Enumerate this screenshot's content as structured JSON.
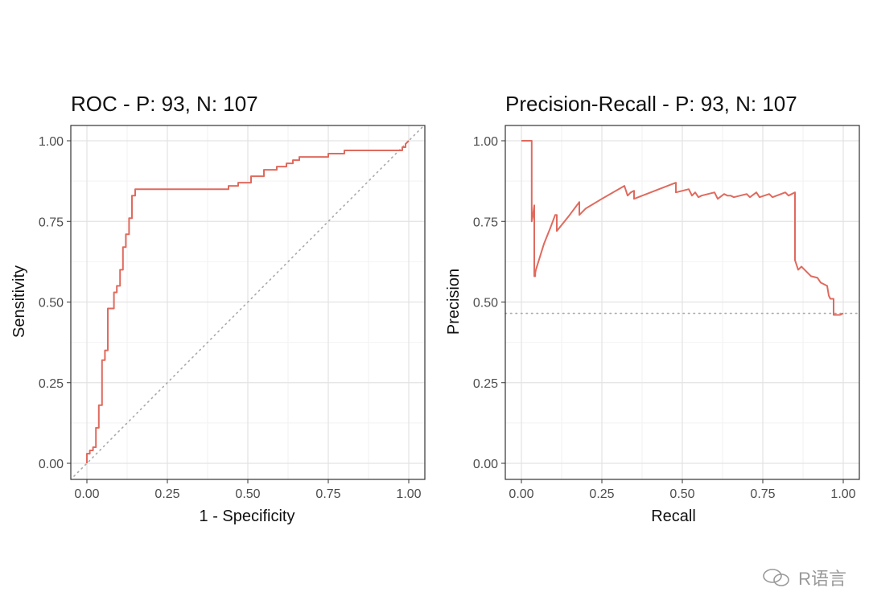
{
  "colors": {
    "curve": "#e06a5e",
    "grid_major": "#e3e3e3",
    "grid_minor": "#f2f2f2",
    "reference": "#a9a9a9"
  },
  "watermark": {
    "text": "R语言",
    "icon": "wechat-icon"
  },
  "chart_data": [
    {
      "type": "line",
      "title": "ROC - P: 93, N: 107",
      "xlabel": "1 - Specificity",
      "ylabel": "Sensitivity",
      "xlim": [
        0,
        1
      ],
      "ylim": [
        0,
        1
      ],
      "xticks": [
        "0.00",
        "0.25",
        "0.50",
        "0.75",
        "1.00"
      ],
      "yticks": [
        "0.00",
        "0.25",
        "0.50",
        "0.75",
        "1.00"
      ],
      "grid": true,
      "reference_line": "diagonal",
      "series": [
        {
          "x": [
            0,
            0,
            0.009,
            0.009,
            0.019,
            0.019,
            0.028,
            0.028,
            0.037,
            0.037,
            0.047,
            0.047,
            0.056,
            0.056,
            0.065,
            0.065,
            0.084,
            0.084,
            0.093,
            0.093,
            0.103,
            0.103,
            0.112,
            0.112,
            0.121,
            0.121,
            0.131,
            0.131,
            0.14,
            0.14,
            0.15,
            0.15,
            0.44,
            0.44,
            0.47,
            0.47,
            0.51,
            0.51,
            0.55,
            0.55,
            0.59,
            0.59,
            0.62,
            0.62,
            0.64,
            0.64,
            0.66,
            0.66,
            0.72,
            0.72,
            0.75,
            0.75,
            0.8,
            0.8,
            0.98,
            0.98,
            0.99,
            0.99,
            1.0
          ],
          "y": [
            0,
            0.03,
            0.03,
            0.04,
            0.04,
            0.05,
            0.05,
            0.11,
            0.11,
            0.18,
            0.18,
            0.32,
            0.32,
            0.35,
            0.35,
            0.48,
            0.48,
            0.53,
            0.53,
            0.55,
            0.55,
            0.6,
            0.6,
            0.67,
            0.67,
            0.71,
            0.71,
            0.76,
            0.76,
            0.83,
            0.83,
            0.85,
            0.85,
            0.86,
            0.86,
            0.87,
            0.87,
            0.89,
            0.89,
            0.91,
            0.91,
            0.92,
            0.92,
            0.93,
            0.93,
            0.94,
            0.94,
            0.95,
            0.95,
            0.95,
            0.95,
            0.96,
            0.96,
            0.97,
            0.97,
            0.98,
            0.98,
            0.99,
            1.0
          ]
        }
      ]
    },
    {
      "type": "line",
      "title": "Precision-Recall - P: 93, N: 107",
      "xlabel": "Recall",
      "ylabel": "Precision",
      "xlim": [
        0,
        1
      ],
      "ylim": [
        0,
        1
      ],
      "xticks": [
        "0.00",
        "0.25",
        "0.50",
        "0.75",
        "1.00"
      ],
      "yticks": [
        "0.00",
        "0.25",
        "0.50",
        "0.75",
        "1.00"
      ],
      "grid": true,
      "reference_line": "horizontal at 0.465",
      "series": [
        {
          "x": [
            0,
            0.032,
            0.032,
            0.032,
            0.032,
            0.036,
            0.04,
            0.04,
            0.043,
            0.043,
            0.045,
            0.07,
            0.09,
            0.105,
            0.11,
            0.11,
            0.15,
            0.18,
            0.18,
            0.2,
            0.25,
            0.32,
            0.33,
            0.34,
            0.35,
            0.35,
            0.48,
            0.48,
            0.52,
            0.53,
            0.54,
            0.55,
            0.56,
            0.6,
            0.61,
            0.63,
            0.64,
            0.65,
            0.66,
            0.7,
            0.71,
            0.73,
            0.74,
            0.77,
            0.78,
            0.82,
            0.83,
            0.85,
            0.85,
            0.86,
            0.87,
            0.89,
            0.9,
            0.92,
            0.93,
            0.95,
            0.955,
            0.96,
            0.97,
            0.97,
            0.99,
            1.0
          ],
          "y": [
            1.0,
            1.0,
            0.75,
            0.82,
            0.75,
            0.77,
            0.8,
            0.58,
            0.58,
            0.59,
            0.6,
            0.68,
            0.73,
            0.77,
            0.77,
            0.72,
            0.77,
            0.81,
            0.77,
            0.79,
            0.82,
            0.86,
            0.83,
            0.84,
            0.845,
            0.82,
            0.87,
            0.84,
            0.85,
            0.83,
            0.84,
            0.825,
            0.83,
            0.84,
            0.82,
            0.835,
            0.83,
            0.83,
            0.825,
            0.835,
            0.825,
            0.84,
            0.825,
            0.835,
            0.825,
            0.84,
            0.83,
            0.84,
            0.63,
            0.6,
            0.61,
            0.59,
            0.58,
            0.575,
            0.56,
            0.55,
            0.52,
            0.51,
            0.51,
            0.46,
            0.46,
            0.465
          ]
        }
      ]
    }
  ]
}
